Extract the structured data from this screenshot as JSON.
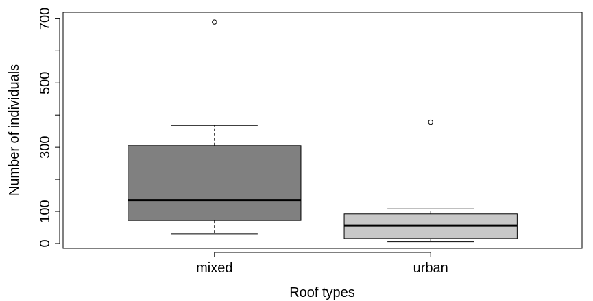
{
  "chart_data": {
    "type": "boxplot",
    "xlabel": "Roof types",
    "ylabel": "Number of individuals",
    "ylim": [
      -15,
      720
    ],
    "y_ticks": [
      0,
      100,
      200,
      300,
      400,
      500,
      600,
      700
    ],
    "y_tick_labels": [
      "0",
      "100",
      "",
      "300",
      "",
      "500",
      "",
      "700"
    ],
    "grid": false,
    "legend": "none",
    "categories": [
      "mixed",
      "urban"
    ],
    "boxes": [
      {
        "name": "mixed",
        "fill": "#808080",
        "lower_whisker": 30,
        "q1": 72,
        "median": 135,
        "q3": 305,
        "upper_whisker": 368,
        "outliers": [
          690
        ]
      },
      {
        "name": "urban",
        "fill": "#c8c8c8",
        "lower_whisker": 5,
        "q1": 15,
        "median": 55,
        "q3": 92,
        "upper_whisker": 108,
        "outliers": [
          378
        ]
      }
    ]
  }
}
